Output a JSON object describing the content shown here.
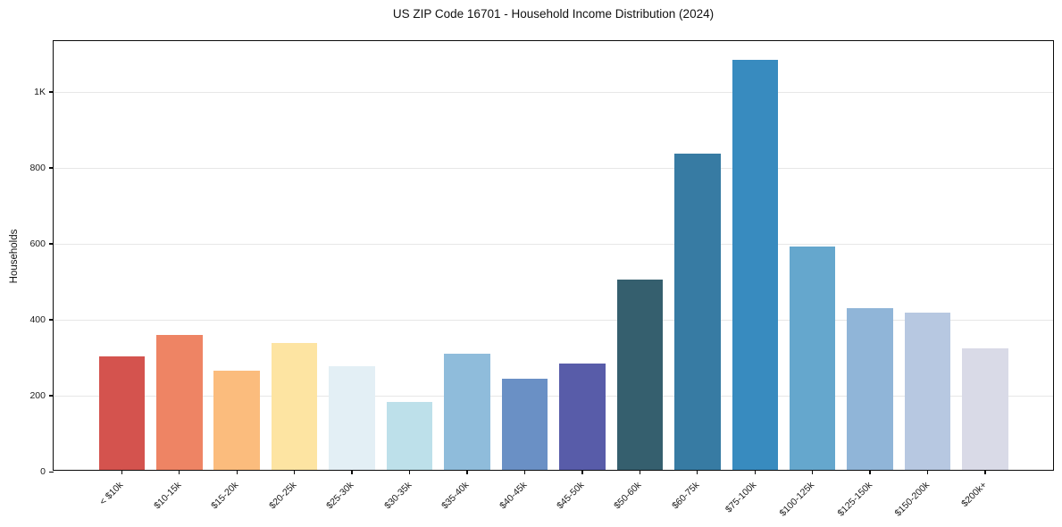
{
  "chart_data": {
    "type": "bar",
    "title": "US ZIP Code 16701 - Household Income Distribution (2024)",
    "xlabel": "",
    "ylabel": "Households",
    "categories": [
      "< $10k",
      "$10-15k",
      "$15-20k",
      "$20-25k",
      "$25-30k",
      "$30-35k",
      "$35-40k",
      "$40-45k",
      "$45-50k",
      "$50-60k",
      "$60-75k",
      "$75-100k",
      "$100-125k",
      "$125-150k",
      "$150-200k",
      "$200k+"
    ],
    "values": [
      300,
      356,
      261,
      334,
      272,
      180,
      305,
      241,
      279,
      502,
      834,
      1080,
      589,
      425,
      415,
      321
    ],
    "bar_colors": [
      "#d4534e",
      "#ee8464",
      "#fbbc7d",
      "#fde4a2",
      "#e3eff5",
      "#bde0ea",
      "#8fbcdb",
      "#6a90c5",
      "#585ca9",
      "#355f6e",
      "#377ba3",
      "#388bbf",
      "#65a7cd",
      "#90b5d8",
      "#b7c8e1",
      "#d9dae7"
    ],
    "ylim": [
      0,
      1134
    ],
    "yticks": {
      "values": [
        0,
        200,
        400,
        600,
        800,
        1000
      ],
      "labels": [
        "0",
        "200",
        "400",
        "600",
        "800",
        "1K"
      ]
    },
    "grid": "horizontal",
    "grid_color": "#e7e7e7",
    "legend": "none",
    "background": "#ffffff",
    "spine_color": "#0a0a0a"
  }
}
